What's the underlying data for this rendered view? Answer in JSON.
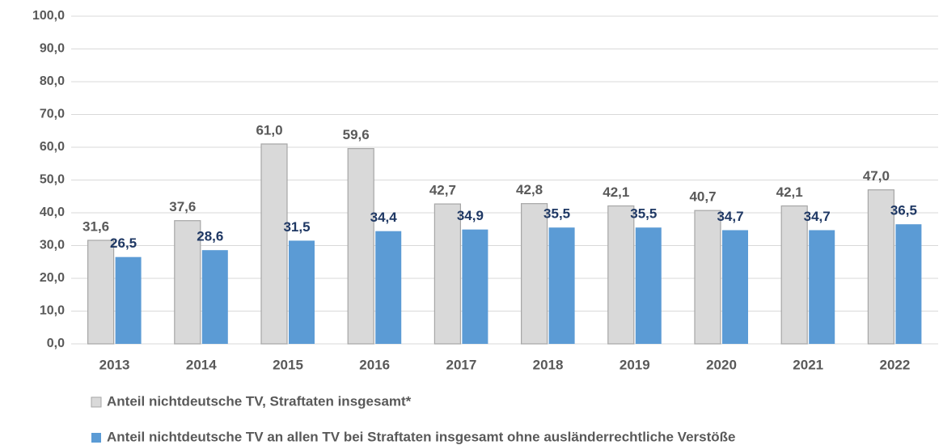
{
  "chart_data": {
    "type": "bar",
    "categories": [
      "2013",
      "2014",
      "2015",
      "2016",
      "2017",
      "2018",
      "2019",
      "2020",
      "2021",
      "2022"
    ],
    "series": [
      {
        "name": "Anteil nichtdeutsche TV, Straftaten insgesamt*",
        "color": "#d9d9d9",
        "values": [
          31.6,
          37.6,
          61.0,
          59.6,
          42.7,
          42.8,
          42.1,
          40.7,
          42.1,
          47.0
        ],
        "value_labels": [
          "31,6",
          "37,6",
          "61,0",
          "59,6",
          "42,7",
          "42,8",
          "42,1",
          "40,7",
          "42,1",
          "47,0"
        ]
      },
      {
        "name": "Anteil nichtdeutsche TV an allen TV bei Straftaten insgesamt ohne ausländerrechtliche Verstöße",
        "color": "#5b9bd5",
        "values": [
          26.5,
          28.6,
          31.5,
          34.4,
          34.9,
          35.5,
          35.5,
          34.7,
          34.7,
          36.5
        ],
        "value_labels": [
          "26,5",
          "28,6",
          "31,5",
          "34,4",
          "34,9",
          "35,5",
          "35,5",
          "34,7",
          "34,7",
          "36,5"
        ]
      }
    ],
    "ylim": [
      0,
      100
    ],
    "yticks": [
      {
        "value": 0,
        "label": "0,0"
      },
      {
        "value": 10,
        "label": "10,0"
      },
      {
        "value": 20,
        "label": "20,0"
      },
      {
        "value": 30,
        "label": "30,0"
      },
      {
        "value": 40,
        "label": "40,0"
      },
      {
        "value": 50,
        "label": "50,0"
      },
      {
        "value": 60,
        "label": "60,0"
      },
      {
        "value": 70,
        "label": "70,0"
      },
      {
        "value": 80,
        "label": "80,0"
      },
      {
        "value": 90,
        "label": "90,0"
      },
      {
        "value": 100,
        "label": "100,0"
      }
    ],
    "grid": true
  }
}
